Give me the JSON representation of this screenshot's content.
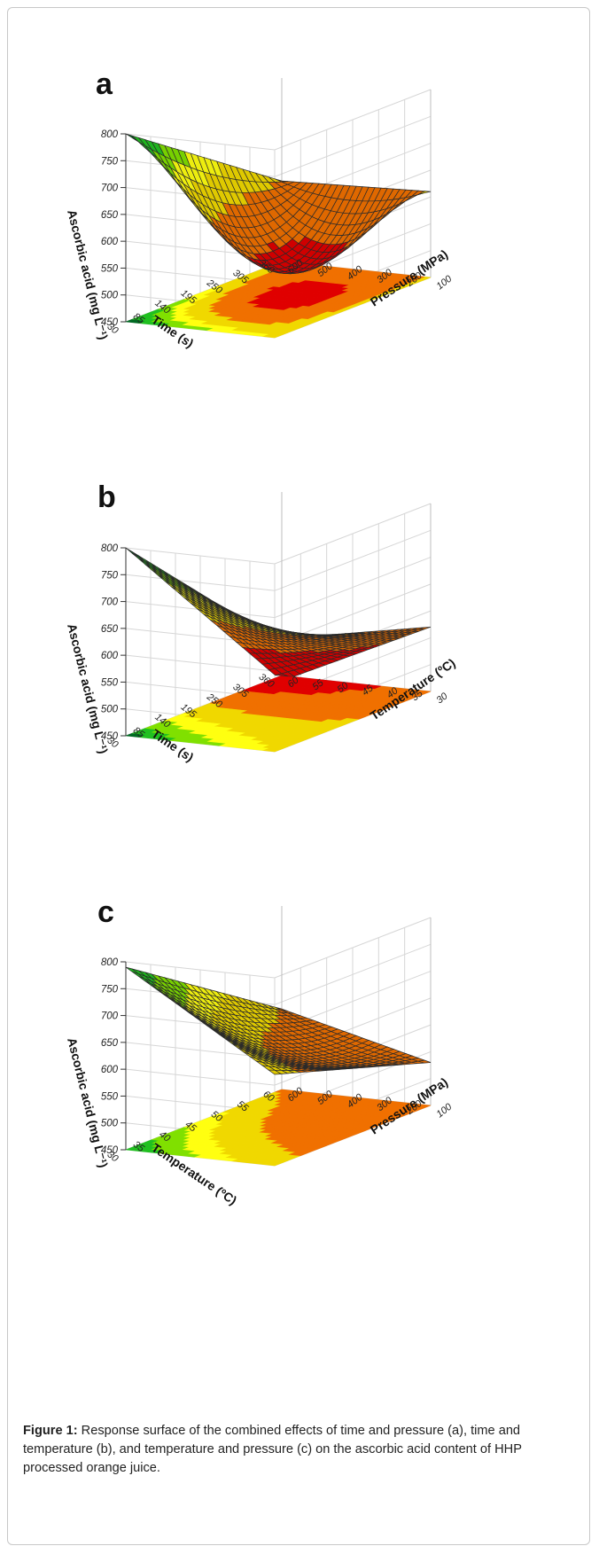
{
  "figure": {
    "caption_label": "Figure 1:",
    "caption_text": " Response surface of the combined effects of time and pressure (a), time and temperature (b), and temperature and pressure (c) on the ascorbic acid content of HHP processed orange juice."
  },
  "chart_data": [
    {
      "panel": "a",
      "type": "surface",
      "zlabel": "Ascorbic acid (mg L⁻¹)",
      "xlabel": "Time (s)",
      "ylabel": "Pressure (MPa)",
      "x_ticks": [
        "30",
        "85",
        "140",
        "195",
        "250",
        "305",
        "360"
      ],
      "y_ticks": [
        "100",
        "200",
        "300",
        "400",
        "500",
        "600"
      ],
      "z_ticks": [
        "450",
        "500",
        "550",
        "600",
        "650",
        "700",
        "750",
        "800"
      ],
      "xlim": [
        30,
        360
      ],
      "ylim": [
        100,
        600
      ],
      "zlim": [
        450,
        800
      ],
      "corners": {
        "x_min_y_min": 660,
        "x_min_y_max": 800,
        "x_max_y_min": 610,
        "x_max_y_max": 600,
        "minimum": 455
      },
      "colormap": [
        "#e00000",
        "#f07000",
        "#f0d800",
        "#ffff10",
        "#80e000",
        "#20c020",
        "#006a22"
      ]
    },
    {
      "panel": "b",
      "type": "surface",
      "zlabel": "Ascorbic acid (mg L⁻¹)",
      "xlabel": "Time (s)",
      "ylabel": "Temperature (ºC)",
      "x_ticks": [
        "30",
        "85",
        "140",
        "195",
        "250",
        "305",
        "360"
      ],
      "y_ticks": [
        "30",
        "35",
        "40",
        "45",
        "50",
        "55",
        "60"
      ],
      "z_ticks": [
        "450",
        "500",
        "550",
        "600",
        "650",
        "700",
        "750",
        "800"
      ],
      "xlim": [
        30,
        360
      ],
      "ylim": [
        30,
        60
      ],
      "zlim": [
        450,
        800
      ],
      "corners": {
        "x_min_y_min": 660,
        "x_min_y_max": 800,
        "x_max_y_min": 570,
        "x_max_y_max": 440,
        "minimum": 440
      },
      "colormap": [
        "#e00000",
        "#f07000",
        "#f0d800",
        "#ffff10",
        "#80e000",
        "#20c020",
        "#006a22"
      ]
    },
    {
      "panel": "c",
      "type": "surface",
      "zlabel": "Ascorbic acid (mg L⁻¹)",
      "xlabel": "Temperature (ºC)",
      "ylabel": "Pressure (MPa)",
      "x_ticks": [
        "30",
        "35",
        "40",
        "45",
        "50",
        "55",
        "60"
      ],
      "y_ticks": [
        "100",
        "200",
        "300",
        "400",
        "500",
        "600"
      ],
      "z_ticks": [
        "450",
        "500",
        "550",
        "600",
        "650",
        "700",
        "750",
        "800"
      ],
      "xlim": [
        30,
        60
      ],
      "ylim": [
        100,
        600
      ],
      "zlim": [
        450,
        800
      ],
      "corners": {
        "x_min_y_min": 620,
        "x_min_y_max": 790,
        "x_max_y_min": 530,
        "x_max_y_max": 600,
        "minimum": 510
      },
      "colormap": [
        "#e00000",
        "#f07000",
        "#f0d800",
        "#ffff10",
        "#80e000",
        "#20c020",
        "#006a22"
      ]
    }
  ]
}
